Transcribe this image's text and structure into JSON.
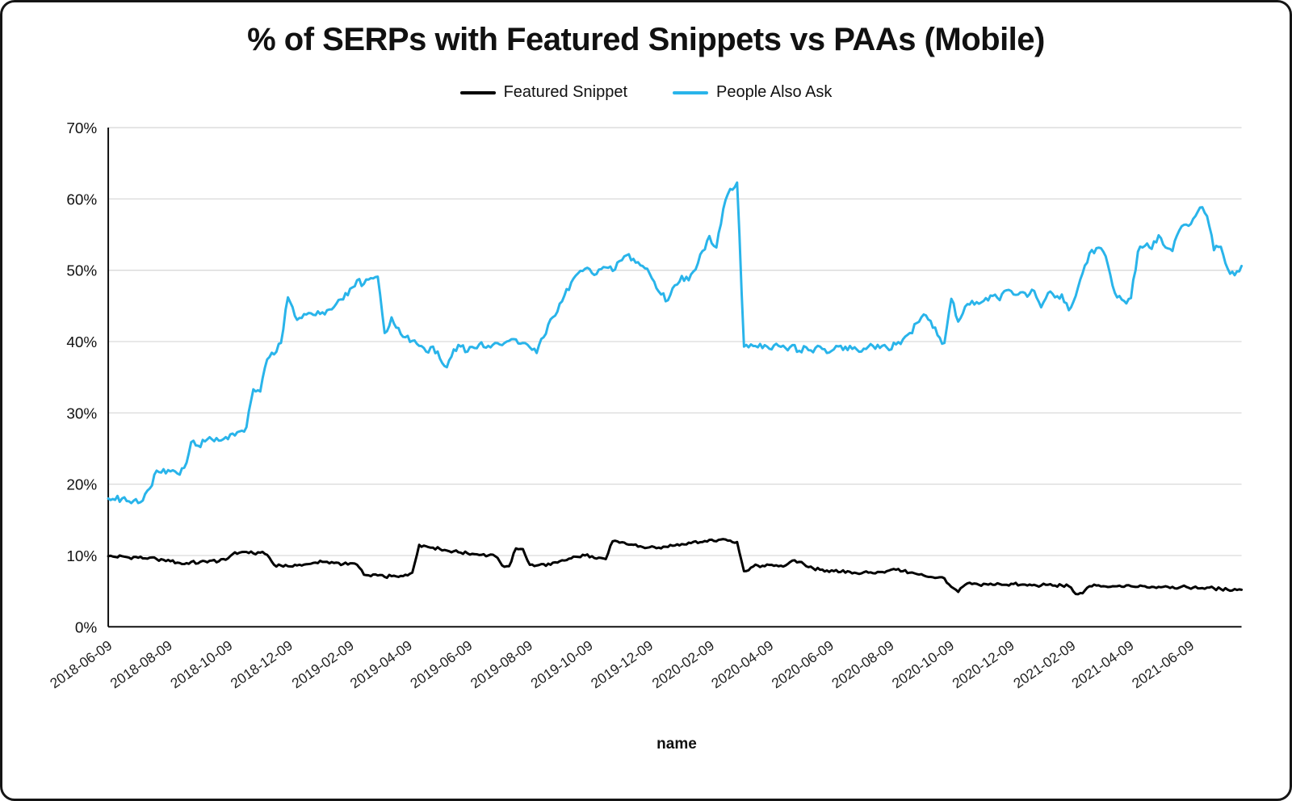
{
  "window": {
    "background": "#ffffff",
    "border_color": "#151515"
  },
  "chart_data": {
    "type": "line",
    "title": "% of SERPs with Featured Snippets vs PAAs (Mobile)",
    "xlabel": "name",
    "ylabel": "",
    "ylim": [
      0,
      70
    ],
    "y_ticks": [
      0,
      10,
      20,
      30,
      40,
      50,
      60,
      70
    ],
    "y_tick_suffix": "%",
    "grid": true,
    "legend_position": "top-center",
    "x_tick_labels": [
      "2018-06-09",
      "2018-08-09",
      "2018-10-09",
      "2018-12-09",
      "2019-02-09",
      "2019-04-09",
      "2019-06-09",
      "2019-08-09",
      "2019-10-09",
      "2019-12-09",
      "2020-02-09",
      "2020-04-09",
      "2020-06-09",
      "2020-08-09",
      "2020-10-09",
      "2020-12-09",
      "2021-02-09",
      "2021-04-09",
      "2021-06-09"
    ],
    "start_date": "2018-06-09",
    "interval_days": 7,
    "series": [
      {
        "name": "Featured Snippet",
        "color": "#000000",
        "jitter": 0.22,
        "values": [
          9.9,
          9.8,
          9.9,
          9.7,
          9.8,
          9.6,
          9.7,
          9.5,
          9.4,
          9.2,
          9.0,
          8.8,
          9.1,
          8.9,
          9.2,
          9.3,
          9.2,
          9.4,
          10.2,
          10.4,
          10.5,
          10.3,
          10.4,
          10.1,
          8.7,
          8.6,
          8.5,
          8.7,
          8.6,
          8.8,
          9.0,
          9.1,
          8.9,
          9.0,
          8.8,
          8.9,
          8.7,
          7.3,
          7.1,
          7.2,
          7.0,
          7.1,
          7.0,
          7.3,
          7.6,
          11.5,
          11.3,
          11.1,
          10.9,
          10.7,
          10.6,
          10.4,
          10.3,
          10.2,
          10.1,
          10.0,
          9.9,
          8.6,
          8.5,
          11.0,
          10.9,
          8.7,
          8.6,
          8.8,
          8.7,
          9.0,
          9.3,
          9.6,
          9.8,
          10.0,
          9.9,
          9.7,
          9.5,
          12.0,
          11.8,
          11.6,
          11.5,
          11.3,
          11.1,
          11.2,
          11.0,
          11.2,
          11.4,
          11.6,
          11.8,
          12.0,
          11.9,
          12.2,
          12.0,
          12.3,
          12.1,
          11.9,
          7.8,
          8.3,
          8.6,
          8.5,
          8.7,
          8.5,
          8.6,
          9.3,
          9.1,
          8.5,
          8.2,
          8.0,
          7.9,
          7.8,
          7.7,
          7.8,
          7.6,
          7.5,
          7.6,
          7.5,
          7.7,
          7.9,
          8.0,
          7.8,
          7.6,
          7.4,
          7.2,
          7.0,
          6.9,
          6.8,
          5.6,
          4.9,
          5.9,
          6.0,
          5.9,
          6.0,
          5.9,
          6.0,
          5.9,
          6.0,
          5.9,
          5.8,
          5.9,
          5.8,
          5.9,
          5.8,
          5.8,
          5.7,
          4.6,
          4.7,
          5.7,
          5.8,
          5.7,
          5.6,
          5.7,
          5.6,
          5.7,
          5.6,
          5.7,
          5.6,
          5.6,
          5.7,
          5.6,
          5.5,
          5.6,
          5.5,
          5.4,
          5.5,
          5.4,
          5.3,
          5.2,
          5.3,
          5.2
        ]
      },
      {
        "name": "People Also Ask",
        "color": "#29b4ea",
        "jitter": 0.5,
        "values": [
          18.0,
          17.8,
          18.0,
          17.6,
          17.9,
          17.7,
          19.4,
          21.9,
          22.1,
          21.8,
          21.5,
          22.3,
          25.9,
          25.4,
          26.0,
          26.3,
          26.1,
          26.6,
          27.1,
          27.4,
          28.0,
          33.3,
          33.0,
          37.5,
          38.2,
          39.8,
          46.2,
          43.6,
          43.3,
          44.0,
          43.7,
          44.1,
          44.5,
          45.3,
          45.9,
          47.4,
          48.6,
          48.1,
          48.9,
          49.1,
          41.2,
          43.4,
          41.9,
          40.6,
          40.1,
          39.4,
          38.6,
          39.3,
          37.6,
          36.4,
          38.9,
          39.3,
          38.6,
          39.1,
          39.9,
          39.4,
          39.8,
          39.5,
          40.1,
          40.3,
          39.8,
          39.2,
          38.4,
          40.6,
          43.1,
          44.2,
          46.4,
          48.3,
          49.6,
          50.2,
          49.6,
          50.1,
          50.4,
          49.9,
          51.3,
          52.1,
          51.6,
          50.7,
          50.2,
          48.4,
          46.6,
          45.8,
          47.9,
          49.2,
          48.6,
          50.1,
          52.7,
          54.8,
          53.2,
          58.6,
          61.4,
          62.3,
          39.3,
          39.6,
          39.2,
          39.5,
          38.9,
          39.4,
          39.1,
          39.5,
          38.7,
          39.2,
          38.5,
          39.3,
          38.4,
          38.9,
          39.4,
          38.8,
          39.2,
          38.6,
          39.3,
          39.0,
          39.4,
          38.8,
          39.6,
          40.3,
          41.2,
          42.6,
          43.8,
          42.9,
          40.9,
          39.8,
          46.0,
          42.8,
          44.9,
          45.7,
          45.3,
          46.1,
          46.4,
          45.8,
          47.2,
          46.6,
          46.9,
          46.3,
          47.1,
          44.8,
          46.8,
          46.2,
          46.6,
          44.4,
          46.4,
          49.6,
          52.4,
          53.1,
          52.6,
          49.4,
          46.2,
          45.7,
          46.1,
          52.6,
          53.4,
          53.0,
          54.9,
          53.2,
          52.7,
          55.6,
          56.4,
          57.2,
          58.8,
          57.6,
          52.8,
          53.3,
          50.2,
          49.3,
          50.6
        ]
      }
    ]
  }
}
